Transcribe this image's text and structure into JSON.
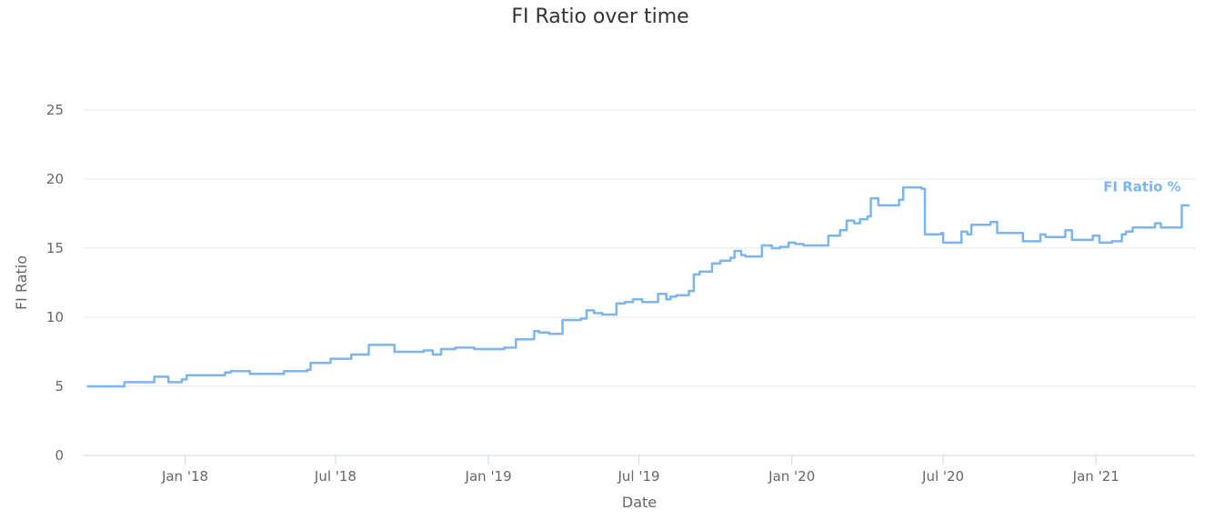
{
  "chart_data": {
    "type": "line",
    "title": "FI Ratio over time",
    "xlabel": "Date",
    "ylabel": "FI Ratio",
    "x_axis_type": "datetime",
    "xlim": [
      "2017-09-01",
      "2021-04-30"
    ],
    "ylim": [
      0,
      25
    ],
    "y_ticks": [
      0,
      5,
      10,
      15,
      20,
      25
    ],
    "x_ticks": [
      {
        "date": "2018-01-01",
        "label": "Jan '18"
      },
      {
        "date": "2018-07-01",
        "label": "Jul '18"
      },
      {
        "date": "2019-01-01",
        "label": "Jan '19"
      },
      {
        "date": "2019-07-01",
        "label": "Jul '19"
      },
      {
        "date": "2020-01-01",
        "label": "Jan '20"
      },
      {
        "date": "2020-07-01",
        "label": "Jul '20"
      },
      {
        "date": "2021-01-01",
        "label": "Jan '21"
      }
    ],
    "grid": true,
    "colors": {
      "line": "#7cb5ec",
      "grid": "#e6e6e6",
      "axis": "#ccd6eb"
    },
    "series": [
      {
        "name": "FI Ratio %",
        "step": true,
        "points": [
          [
            "2017-09-05",
            5.0
          ],
          [
            "2017-10-20",
            5.3
          ],
          [
            "2017-11-25",
            5.7
          ],
          [
            "2017-12-12",
            5.3
          ],
          [
            "2017-12-28",
            5.5
          ],
          [
            "2018-01-03",
            5.8
          ],
          [
            "2018-02-10",
            5.8
          ],
          [
            "2018-02-18",
            6.0
          ],
          [
            "2018-02-25",
            6.1
          ],
          [
            "2018-03-20",
            5.9
          ],
          [
            "2018-04-30",
            6.1
          ],
          [
            "2018-05-28",
            6.2
          ],
          [
            "2018-06-01",
            6.7
          ],
          [
            "2018-06-25",
            7.0
          ],
          [
            "2018-07-20",
            7.3
          ],
          [
            "2018-08-10",
            8.0
          ],
          [
            "2018-09-10",
            7.5
          ],
          [
            "2018-10-15",
            7.6
          ],
          [
            "2018-10-26",
            7.3
          ],
          [
            "2018-11-05",
            7.7
          ],
          [
            "2018-11-22",
            7.8
          ],
          [
            "2018-12-15",
            7.7
          ],
          [
            "2019-01-20",
            7.8
          ],
          [
            "2019-02-03",
            8.4
          ],
          [
            "2019-02-25",
            9.0
          ],
          [
            "2019-03-03",
            8.9
          ],
          [
            "2019-03-15",
            8.8
          ],
          [
            "2019-03-31",
            9.8
          ],
          [
            "2019-04-08",
            9.8
          ],
          [
            "2019-04-22",
            9.9
          ],
          [
            "2019-04-29",
            10.5
          ],
          [
            "2019-05-08",
            10.3
          ],
          [
            "2019-05-18",
            10.2
          ],
          [
            "2019-06-04",
            11.0
          ],
          [
            "2019-06-14",
            11.1
          ],
          [
            "2019-06-24",
            11.3
          ],
          [
            "2019-07-05",
            11.1
          ],
          [
            "2019-07-24",
            11.7
          ],
          [
            "2019-08-03",
            11.3
          ],
          [
            "2019-08-08",
            11.5
          ],
          [
            "2019-08-15",
            11.6
          ],
          [
            "2019-08-30",
            11.9
          ],
          [
            "2019-09-05",
            13.1
          ],
          [
            "2019-09-12",
            13.3
          ],
          [
            "2019-09-27",
            13.9
          ],
          [
            "2019-10-07",
            14.1
          ],
          [
            "2019-10-19",
            14.3
          ],
          [
            "2019-10-24",
            14.8
          ],
          [
            "2019-11-01",
            14.5
          ],
          [
            "2019-11-06",
            14.4
          ],
          [
            "2019-11-26",
            15.2
          ],
          [
            "2019-12-08",
            15.0
          ],
          [
            "2019-12-18",
            15.1
          ],
          [
            "2019-12-28",
            15.4
          ],
          [
            "2020-01-05",
            15.3
          ],
          [
            "2020-01-15",
            15.2
          ],
          [
            "2020-01-25",
            15.2
          ],
          [
            "2020-02-03",
            15.2
          ],
          [
            "2020-02-14",
            15.9
          ],
          [
            "2020-02-28",
            16.3
          ],
          [
            "2020-03-07",
            17.0
          ],
          [
            "2020-03-16",
            16.8
          ],
          [
            "2020-03-23",
            17.1
          ],
          [
            "2020-04-01",
            17.3
          ],
          [
            "2020-04-05",
            18.6
          ],
          [
            "2020-04-14",
            18.1
          ],
          [
            "2020-05-09",
            18.5
          ],
          [
            "2020-05-14",
            19.4
          ],
          [
            "2020-06-05",
            19.3
          ],
          [
            "2020-06-09",
            16.0
          ],
          [
            "2020-06-29",
            16.1
          ],
          [
            "2020-07-01",
            15.4
          ],
          [
            "2020-07-23",
            16.2
          ],
          [
            "2020-07-30",
            16.0
          ],
          [
            "2020-08-04",
            16.7
          ],
          [
            "2020-08-27",
            16.9
          ],
          [
            "2020-09-04",
            16.1
          ],
          [
            "2020-09-29",
            16.1
          ],
          [
            "2020-10-05",
            15.5
          ],
          [
            "2020-10-26",
            16.0
          ],
          [
            "2020-11-01",
            15.8
          ],
          [
            "2020-11-25",
            16.3
          ],
          [
            "2020-12-03",
            15.6
          ],
          [
            "2020-12-28",
            15.9
          ],
          [
            "2021-01-05",
            15.4
          ],
          [
            "2021-01-20",
            15.5
          ],
          [
            "2021-02-01",
            16.0
          ],
          [
            "2021-02-06",
            16.2
          ],
          [
            "2021-02-14",
            16.5
          ],
          [
            "2021-03-13",
            16.8
          ],
          [
            "2021-03-20",
            16.5
          ],
          [
            "2021-04-14",
            18.1
          ],
          [
            "2021-04-22",
            18.0
          ]
        ]
      }
    ]
  }
}
